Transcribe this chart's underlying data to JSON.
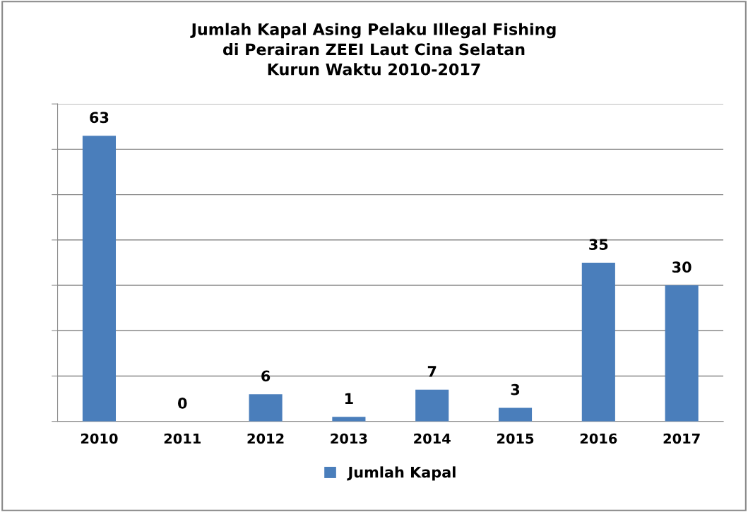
{
  "chart_data": {
    "type": "bar",
    "title": "Jumlah Kapal Asing Pelaku Illegal Fishing\ndi Perairan ZEEI Laut Cina Selatan\nKurun Waktu 2010-2017",
    "categories": [
      "2010",
      "2011",
      "2012",
      "2013",
      "2014",
      "2015",
      "2016",
      "2017"
    ],
    "series": [
      {
        "name": "Jumlah Kapal",
        "color": "#4a7ebb",
        "values": [
          63,
          0,
          6,
          1,
          7,
          3,
          35,
          30
        ]
      }
    ],
    "ylim": [
      0,
      70
    ],
    "yticks": [
      {
        "value": 0,
        "label": null
      },
      {
        "value": 10,
        "label": null
      },
      {
        "value": 20,
        "label": null
      },
      {
        "value": 30,
        "label": null
      },
      {
        "value": 40,
        "label": null
      },
      {
        "value": 50,
        "label": null
      },
      {
        "value": 60,
        "label": null
      },
      {
        "value": 70,
        "label": null
      }
    ],
    "tick_labels": "x",
    "grid": "y",
    "data_labels": true,
    "legend": "bottom"
  }
}
